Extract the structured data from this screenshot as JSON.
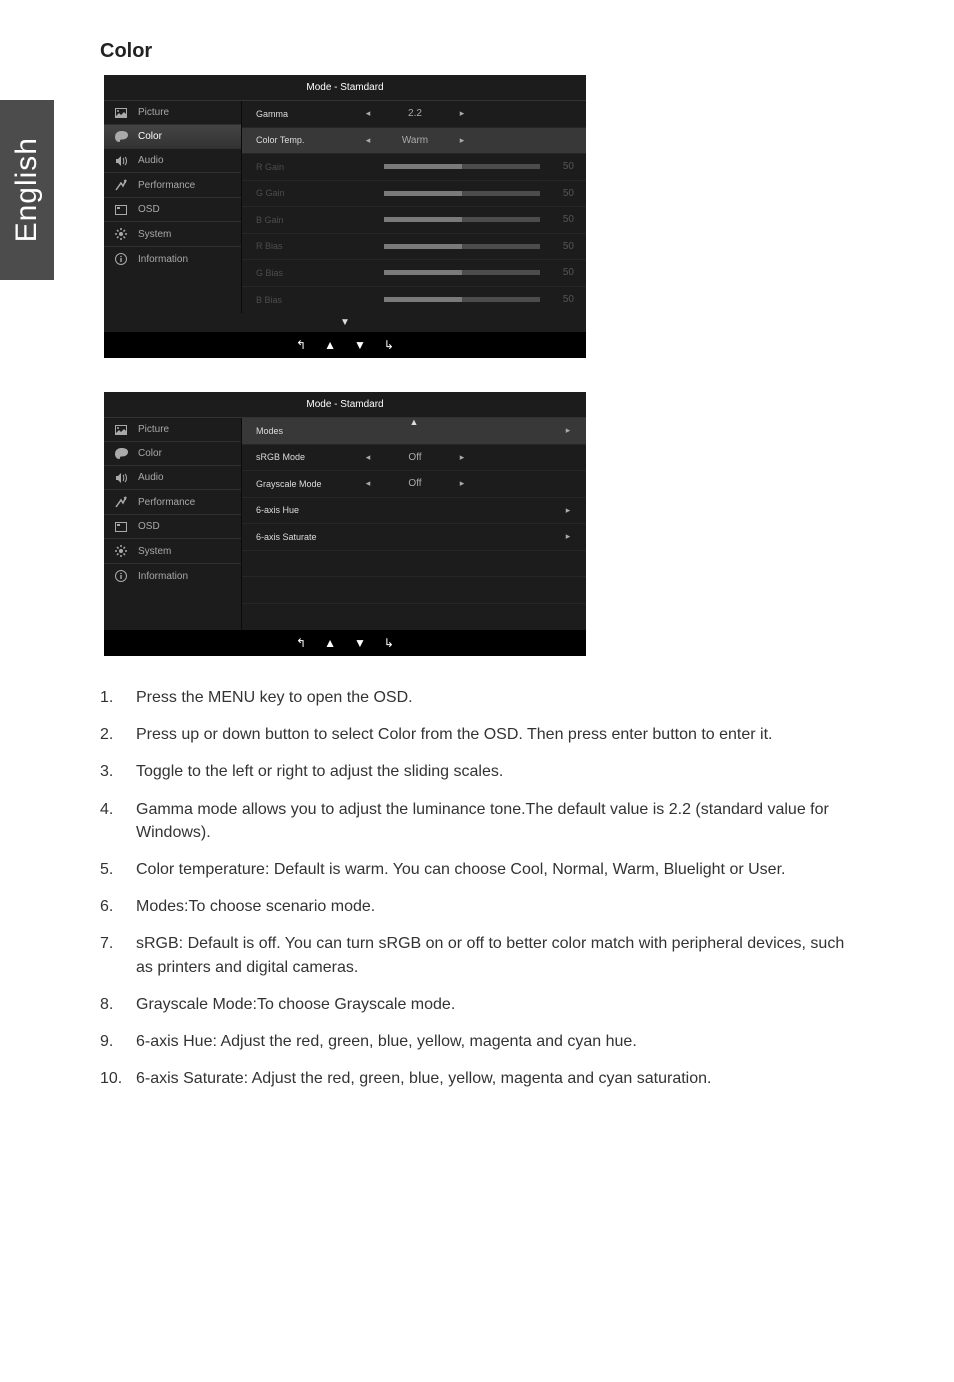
{
  "side_tab_label": "English",
  "page_title": "Color",
  "osd1": {
    "mode_title": "Mode - Stamdard",
    "nav": [
      {
        "label": "Picture",
        "icon": "picture-icon"
      },
      {
        "label": "Color",
        "icon": "color-icon",
        "active": true
      },
      {
        "label": "Audio",
        "icon": "audio-icon"
      },
      {
        "label": "Performance",
        "icon": "performance-icon"
      },
      {
        "label": "OSD",
        "icon": "osd-icon"
      },
      {
        "label": "System",
        "icon": "system-icon"
      },
      {
        "label": "Information",
        "icon": "information-icon"
      }
    ],
    "rows": [
      {
        "label": "Gamma",
        "type": "choice",
        "value": "2.2",
        "enabled": true
      },
      {
        "label": "Color Temp.",
        "type": "choice",
        "value": "Warm",
        "enabled": true,
        "highlight": true
      },
      {
        "label": "R Gain",
        "type": "slider",
        "value": 50,
        "max": 100
      },
      {
        "label": "G Gain",
        "type": "slider",
        "value": 50,
        "max": 100
      },
      {
        "label": "B Gain",
        "type": "slider",
        "value": 50,
        "max": 100
      },
      {
        "label": "R Bias",
        "type": "slider",
        "value": 50,
        "max": 100
      },
      {
        "label": "G Bias",
        "type": "slider",
        "value": 50,
        "max": 100
      },
      {
        "label": "B Bias",
        "type": "slider",
        "value": 50,
        "max": 100
      }
    ]
  },
  "osd2": {
    "mode_title": "Mode - Stamdard",
    "nav": [
      {
        "label": "Picture",
        "icon": "picture-icon"
      },
      {
        "label": "Color",
        "icon": "color-icon"
      },
      {
        "label": "Audio",
        "icon": "audio-icon"
      },
      {
        "label": "Performance",
        "icon": "performance-icon"
      },
      {
        "label": "OSD",
        "icon": "osd-icon"
      },
      {
        "label": "System",
        "icon": "system-icon"
      },
      {
        "label": "Information",
        "icon": "information-icon"
      }
    ],
    "rows": [
      {
        "label": "Modes",
        "type": "submenu",
        "highlight": true,
        "enabled": true
      },
      {
        "label": "sRGB Mode",
        "type": "choice",
        "value": "Off",
        "enabled": true
      },
      {
        "label": "Grayscale Mode",
        "type": "choice",
        "value": "Off",
        "enabled": true
      },
      {
        "label": "6-axis Hue",
        "type": "submenu",
        "enabled": true
      },
      {
        "label": "6-axis Saturate",
        "type": "submenu",
        "enabled": true
      }
    ]
  },
  "instructions": [
    {
      "num": "1.",
      "text": "Press the MENU key to open the OSD."
    },
    {
      "num": "2.",
      "text": "Press up or down button to select Color from the OSD. Then press enter button to enter it."
    },
    {
      "num": "3.",
      "text": "Toggle to the left or right to adjust the sliding scales."
    },
    {
      "num": "4.",
      "text": "Gamma mode allows you to adjust the luminance tone.The default value is 2.2 (standard value for Windows)."
    },
    {
      "num": "5.",
      "text": "Color temperature: Default is warm. You can choose Cool, Normal, Warm, Bluelight or User."
    },
    {
      "num": "6.",
      "text": "Modes:To choose scenario mode."
    },
    {
      "num": "7.",
      "text": "sRGB: Default is off. You can turn sRGB on or off to better color match with peripheral devices, such as printers and digital cameras."
    },
    {
      "num": "8.",
      "text": "Grayscale Mode:To choose Grayscale mode."
    },
    {
      "num": "9.",
      "text": "6-axis Hue: Adjust the red, green, blue, yellow, magenta and cyan hue."
    },
    {
      "num": "10.",
      "text": "6-axis Saturate: Adjust the red, green, blue, yellow, magenta and cyan saturation."
    }
  ]
}
